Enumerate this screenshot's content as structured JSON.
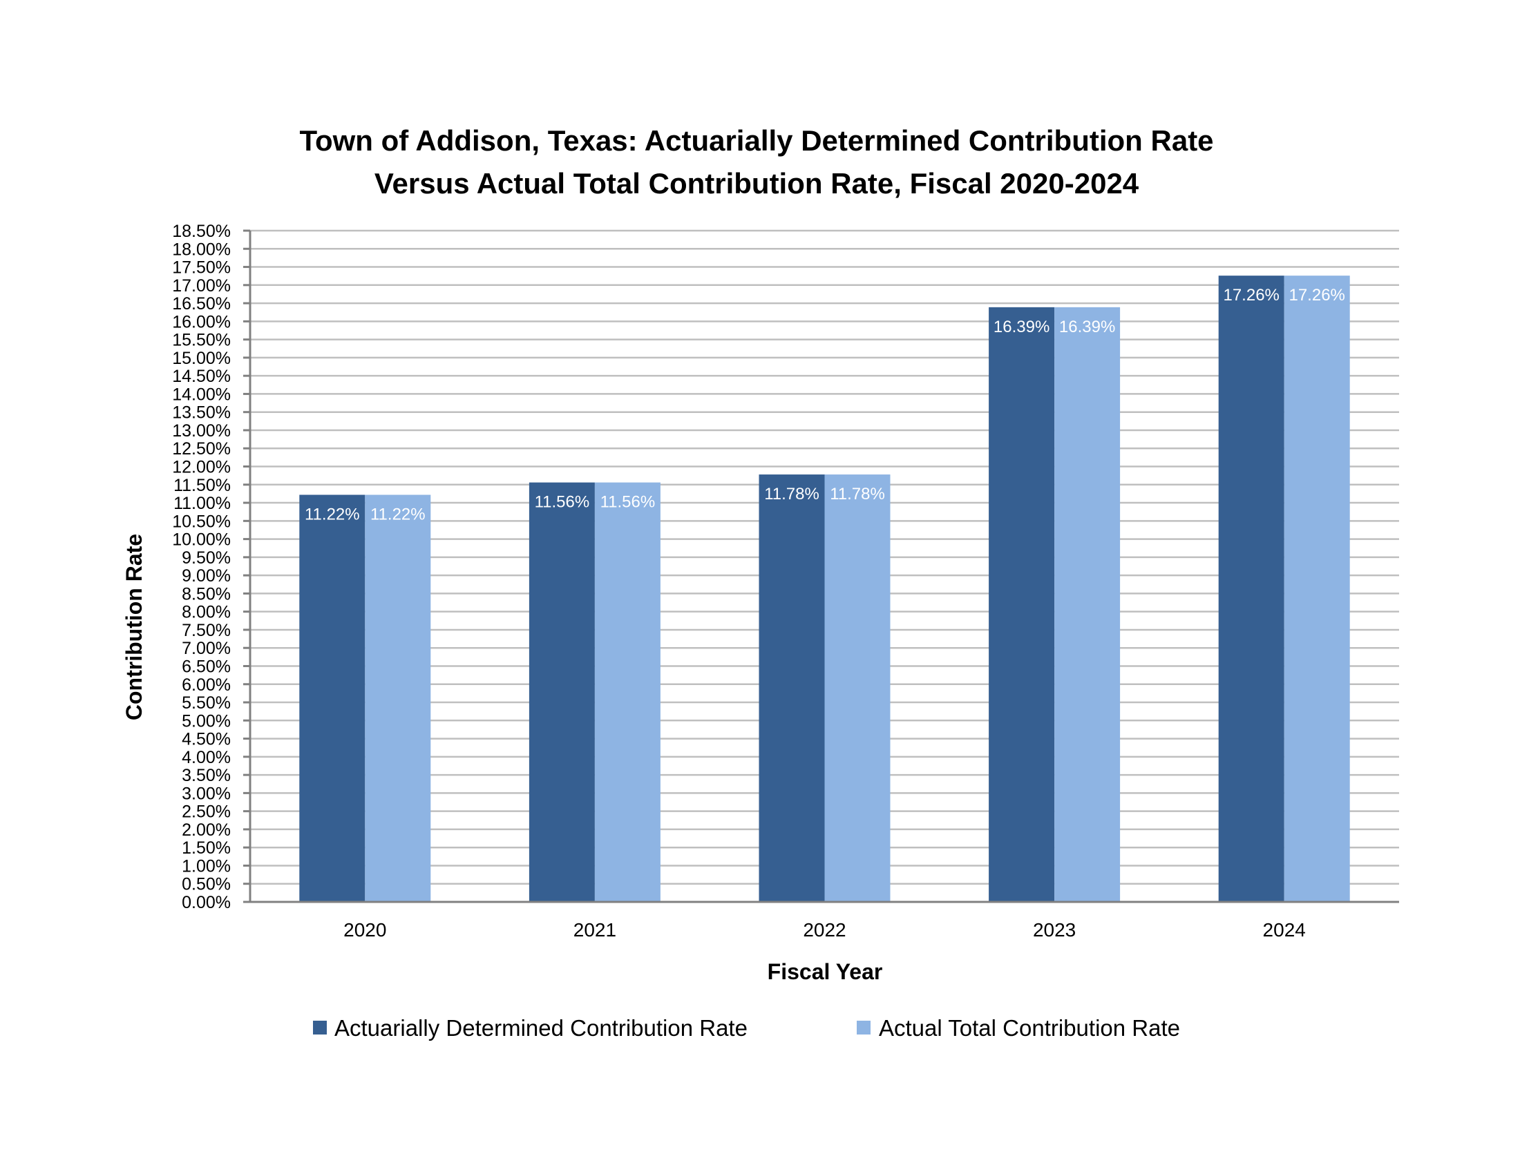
{
  "chart_data": {
    "type": "bar",
    "title": [
      "Town of Addison, Texas: Actuarially Determined Contribution Rate",
      "Versus Actual Total Contribution Rate, Fiscal 2020-2024"
    ],
    "xlabel": "Fiscal Year",
    "ylabel": "Contribution Rate",
    "categories": [
      "2020",
      "2021",
      "2022",
      "2023",
      "2024"
    ],
    "series": [
      {
        "name": "Actuarially Determined Contribution Rate",
        "values": [
          11.22,
          11.56,
          11.78,
          16.39,
          17.26
        ],
        "labels": [
          "11.22%",
          "11.56%",
          "11.78%",
          "16.39%",
          "17.26%"
        ],
        "color": "#365f91"
      },
      {
        "name": "Actual Total Contribution Rate",
        "values": [
          11.22,
          11.56,
          11.78,
          16.39,
          17.26
        ],
        "labels": [
          "11.22%",
          "11.56%",
          "11.78%",
          "16.39%",
          "17.26%"
        ],
        "color": "#8eb4e3"
      }
    ],
    "ylim": [
      0,
      18.5
    ],
    "ytick_step": 0.5,
    "ytick_labels": [
      "0.00%",
      "0.50%",
      "1.00%",
      "1.50%",
      "2.00%",
      "2.50%",
      "3.00%",
      "3.50%",
      "4.00%",
      "4.50%",
      "5.00%",
      "5.50%",
      "6.00%",
      "6.50%",
      "7.00%",
      "7.50%",
      "8.00%",
      "8.50%",
      "9.00%",
      "9.50%",
      "10.00%",
      "10.50%",
      "11.00%",
      "11.50%",
      "12.00%",
      "12.50%",
      "13.00%",
      "13.50%",
      "14.00%",
      "14.50%",
      "15.00%",
      "15.50%",
      "16.00%",
      "16.50%",
      "17.00%",
      "17.50%",
      "18.00%",
      "18.50%"
    ],
    "grid": true,
    "data_labels": "inside-end",
    "legend_position": "bottom"
  }
}
